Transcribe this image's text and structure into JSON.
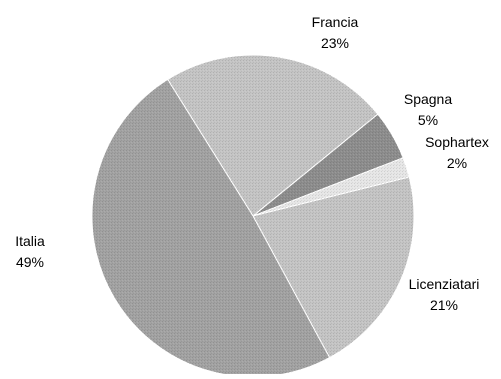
{
  "chart_data": {
    "type": "pie",
    "title": "",
    "slices": [
      {
        "label": "Francia",
        "value": 23,
        "display": "23%",
        "color": "#c4c4c4"
      },
      {
        "label": "Spagna",
        "value": 5,
        "display": "5%",
        "color": "#8d8d8d"
      },
      {
        "label": "Sophartex",
        "value": 2,
        "display": "2%",
        "color": "#e6e6e6"
      },
      {
        "label": "Licenziatari",
        "value": 21,
        "display": "21%",
        "color": "#c4c4c4"
      },
      {
        "label": "Italia",
        "value": 49,
        "display": "49%",
        "color": "#a2a2a2"
      }
    ],
    "legend": "none",
    "labels": "outside"
  }
}
